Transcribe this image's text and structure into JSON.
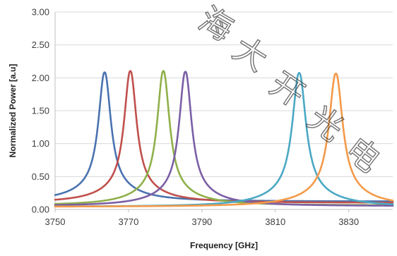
{
  "chart_data": {
    "type": "line",
    "xlabel": "Frequency [GHz]",
    "ylabel": "Normalized Power [a.u]",
    "xlim": [
      3750,
      3842
    ],
    "ylim": [
      0,
      3
    ],
    "x_ticks": [
      "3750",
      "3770",
      "3790",
      "3810",
      "3830"
    ],
    "y_ticks": [
      "0.00",
      "0.50",
      "1.00",
      "1.50",
      "2.00",
      "2.50",
      "3.00"
    ],
    "grid": "horizontal",
    "legend": "none",
    "series": [
      {
        "color": "#4a72b0",
        "center": 3763.5,
        "peak": 2.08,
        "halfwidth": 2.0,
        "baseline": 0.12,
        "shoulder": 0.42,
        "shoulder_width": 8
      },
      {
        "color": "#c0504d",
        "center": 3770.5,
        "peak": 2.1,
        "halfwidth": 2.0,
        "baseline": 0.1,
        "shoulder": 0.4,
        "shoulder_width": 8
      },
      {
        "color": "#8fb04a",
        "center": 3779.5,
        "peak": 2.1,
        "halfwidth": 2.0,
        "baseline": 0.06,
        "shoulder": 0.4,
        "shoulder_width": 8
      },
      {
        "color": "#7b5fa6",
        "center": 3785.5,
        "peak": 2.09,
        "halfwidth": 2.0,
        "baseline": 0.05,
        "shoulder": 0.4,
        "shoulder_width": 8
      },
      {
        "color": "#4ba8c4",
        "center": 3816.5,
        "peak": 2.07,
        "halfwidth": 2.2,
        "baseline": 0.04,
        "shoulder": 0.42,
        "shoulder_width": 9
      },
      {
        "color": "#f39a4a",
        "center": 3826.5,
        "peak": 2.06,
        "halfwidth": 2.2,
        "baseline": 0.04,
        "shoulder": 0.4,
        "shoulder_width": 9
      }
    ]
  },
  "watermark": {
    "glyphs": [
      "海",
      "大",
      "开",
      "光",
      "电"
    ],
    "color": "#444444"
  }
}
